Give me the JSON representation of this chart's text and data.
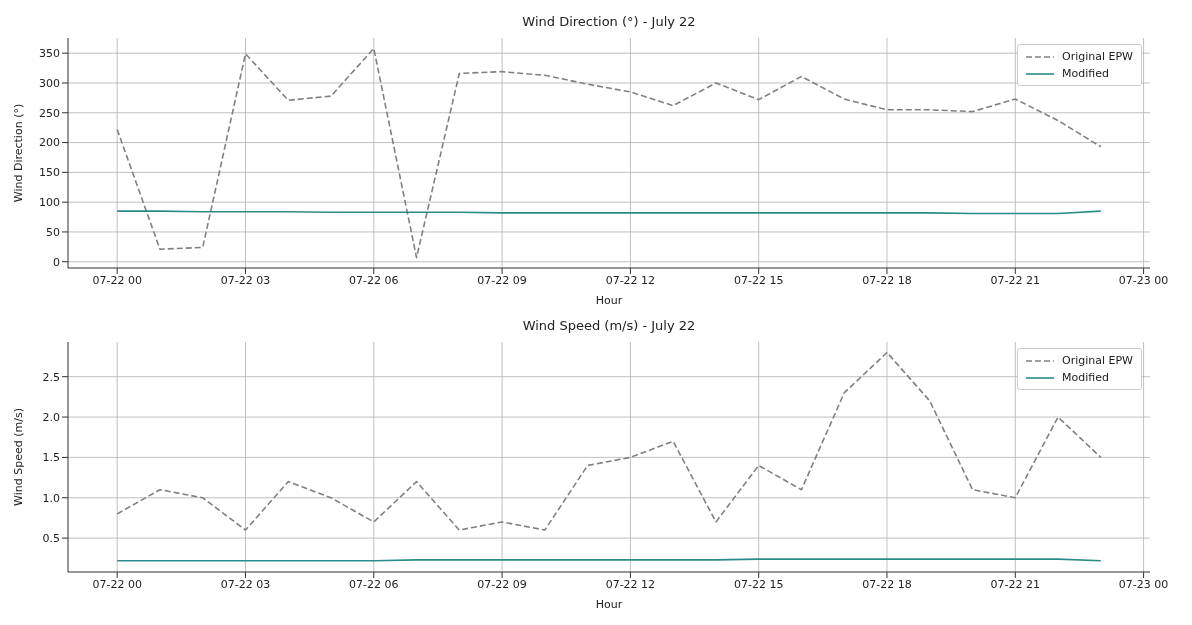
{
  "chart_data": [
    {
      "type": "line",
      "title": "Wind Direction (°) - July 22",
      "xlabel": "Hour",
      "ylabel": "Wind Direction (°)",
      "x": [
        "--07-22T00:00",
        "--07-22T01:00",
        "--07-22T02:00",
        "--07-22T03:00",
        "--07-22T04:00",
        "--07-22T05:00",
        "--07-22T06:00",
        "--07-22T07:00",
        "--07-22T08:00",
        "--07-22T09:00",
        "--07-22T10:00",
        "--07-22T11:00",
        "--07-22T12:00",
        "--07-22T13:00",
        "--07-22T14:00",
        "--07-22T15:00",
        "--07-22T16:00",
        "--07-22T17:00",
        "--07-22T18:00",
        "--07-22T19:00",
        "--07-22T20:00",
        "--07-22T21:00",
        "--07-22T22:00",
        "--07-22T23:00"
      ],
      "xlim": [
        "--07-21T22:51",
        "--07-23T00:09"
      ],
      "xticks": [
        {
          "value": "--07-22T00:00",
          "label": "07-22 00"
        },
        {
          "value": "--07-22T03:00",
          "label": "07-22 03"
        },
        {
          "value": "--07-22T06:00",
          "label": "07-22 06"
        },
        {
          "value": "--07-22T09:00",
          "label": "07-22 09"
        },
        {
          "value": "--07-22T12:00",
          "label": "07-22 12"
        },
        {
          "value": "--07-22T15:00",
          "label": "07-22 15"
        },
        {
          "value": "--07-22T18:00",
          "label": "07-22 18"
        },
        {
          "value": "--07-22T21:00",
          "label": "07-22 21"
        },
        {
          "value": "--07-23T00:00",
          "label": "07-23 00"
        }
      ],
      "ylim": [
        -10.5,
        375.5
      ],
      "yticks": [
        0,
        50,
        100,
        150,
        200,
        250,
        300,
        350
      ],
      "grid": true,
      "legend": "top right",
      "marker": "none",
      "series": [
        {
          "name": "Original EPW",
          "color": "#808080",
          "line_style": "dashed",
          "values": [
            222,
            21,
            24,
            349,
            271,
            278,
            358,
            7,
            316,
            319,
            313,
            298,
            285,
            262,
            300,
            272,
            311,
            273,
            255,
            255,
            252,
            273,
            237,
            193
          ]
        },
        {
          "name": "Modified",
          "color": "#2a8c87",
          "line_style": "solid",
          "values": [
            85,
            85,
            84,
            84,
            84,
            83,
            83,
            83,
            83,
            82,
            82,
            82,
            82,
            82,
            82,
            82,
            82,
            82,
            82,
            82,
            81,
            81,
            81,
            85
          ]
        }
      ]
    },
    {
      "type": "line",
      "title": "Wind Speed (m/s) - July 22",
      "xlabel": "Hour",
      "ylabel": "Wind Speed (m/s)",
      "x": [
        "--07-22T00:00",
        "--07-22T01:00",
        "--07-22T02:00",
        "--07-22T03:00",
        "--07-22T04:00",
        "--07-22T05:00",
        "--07-22T06:00",
        "--07-22T07:00",
        "--07-22T08:00",
        "--07-22T09:00",
        "--07-22T10:00",
        "--07-22T11:00",
        "--07-22T12:00",
        "--07-22T13:00",
        "--07-22T14:00",
        "--07-22T15:00",
        "--07-22T16:00",
        "--07-22T17:00",
        "--07-22T18:00",
        "--07-22T19:00",
        "--07-22T20:00",
        "--07-22T21:00",
        "--07-22T22:00",
        "--07-22T23:00"
      ],
      "xlim": [
        "--07-21T22:51",
        "--07-23T00:09"
      ],
      "xticks": [
        {
          "value": "--07-22T00:00",
          "label": "07-22 00"
        },
        {
          "value": "--07-22T03:00",
          "label": "07-22 03"
        },
        {
          "value": "--07-22T06:00",
          "label": "07-22 06"
        },
        {
          "value": "--07-22T09:00",
          "label": "07-22 09"
        },
        {
          "value": "--07-22T12:00",
          "label": "07-22 12"
        },
        {
          "value": "--07-22T15:00",
          "label": "07-22 15"
        },
        {
          "value": "--07-22T18:00",
          "label": "07-22 18"
        },
        {
          "value": "--07-22T21:00",
          "label": "07-22 21"
        },
        {
          "value": "--07-23T00:00",
          "label": "07-23 00"
        }
      ],
      "ylim": [
        0.08,
        2.93
      ],
      "yticks": [
        {
          "value": 0.5,
          "label": "0.5"
        },
        {
          "value": 1,
          "label": "1.0"
        },
        {
          "value": 1.5,
          "label": "1.5"
        },
        {
          "value": 2,
          "label": "2.0"
        },
        {
          "value": 2.5,
          "label": "2.5"
        }
      ],
      "grid": true,
      "legend": "top right",
      "marker": "none",
      "series": [
        {
          "name": "Original EPW",
          "color": "#808080",
          "line_style": "dashed",
          "values": [
            0.8,
            1.1,
            1.0,
            0.6,
            1.2,
            1.0,
            0.7,
            1.2,
            0.6,
            0.7,
            0.6,
            1.4,
            1.5,
            1.7,
            0.7,
            1.4,
            1.1,
            2.3,
            2.8,
            2.2,
            1.1,
            1.0,
            2.0,
            1.5
          ]
        },
        {
          "name": "Modified",
          "color": "#2a8c87",
          "line_style": "solid",
          "values": [
            0.22,
            0.22,
            0.22,
            0.22,
            0.22,
            0.22,
            0.22,
            0.23,
            0.23,
            0.23,
            0.23,
            0.23,
            0.23,
            0.23,
            0.23,
            0.24,
            0.24,
            0.24,
            0.24,
            0.24,
            0.24,
            0.24,
            0.24,
            0.22
          ]
        }
      ]
    }
  ]
}
